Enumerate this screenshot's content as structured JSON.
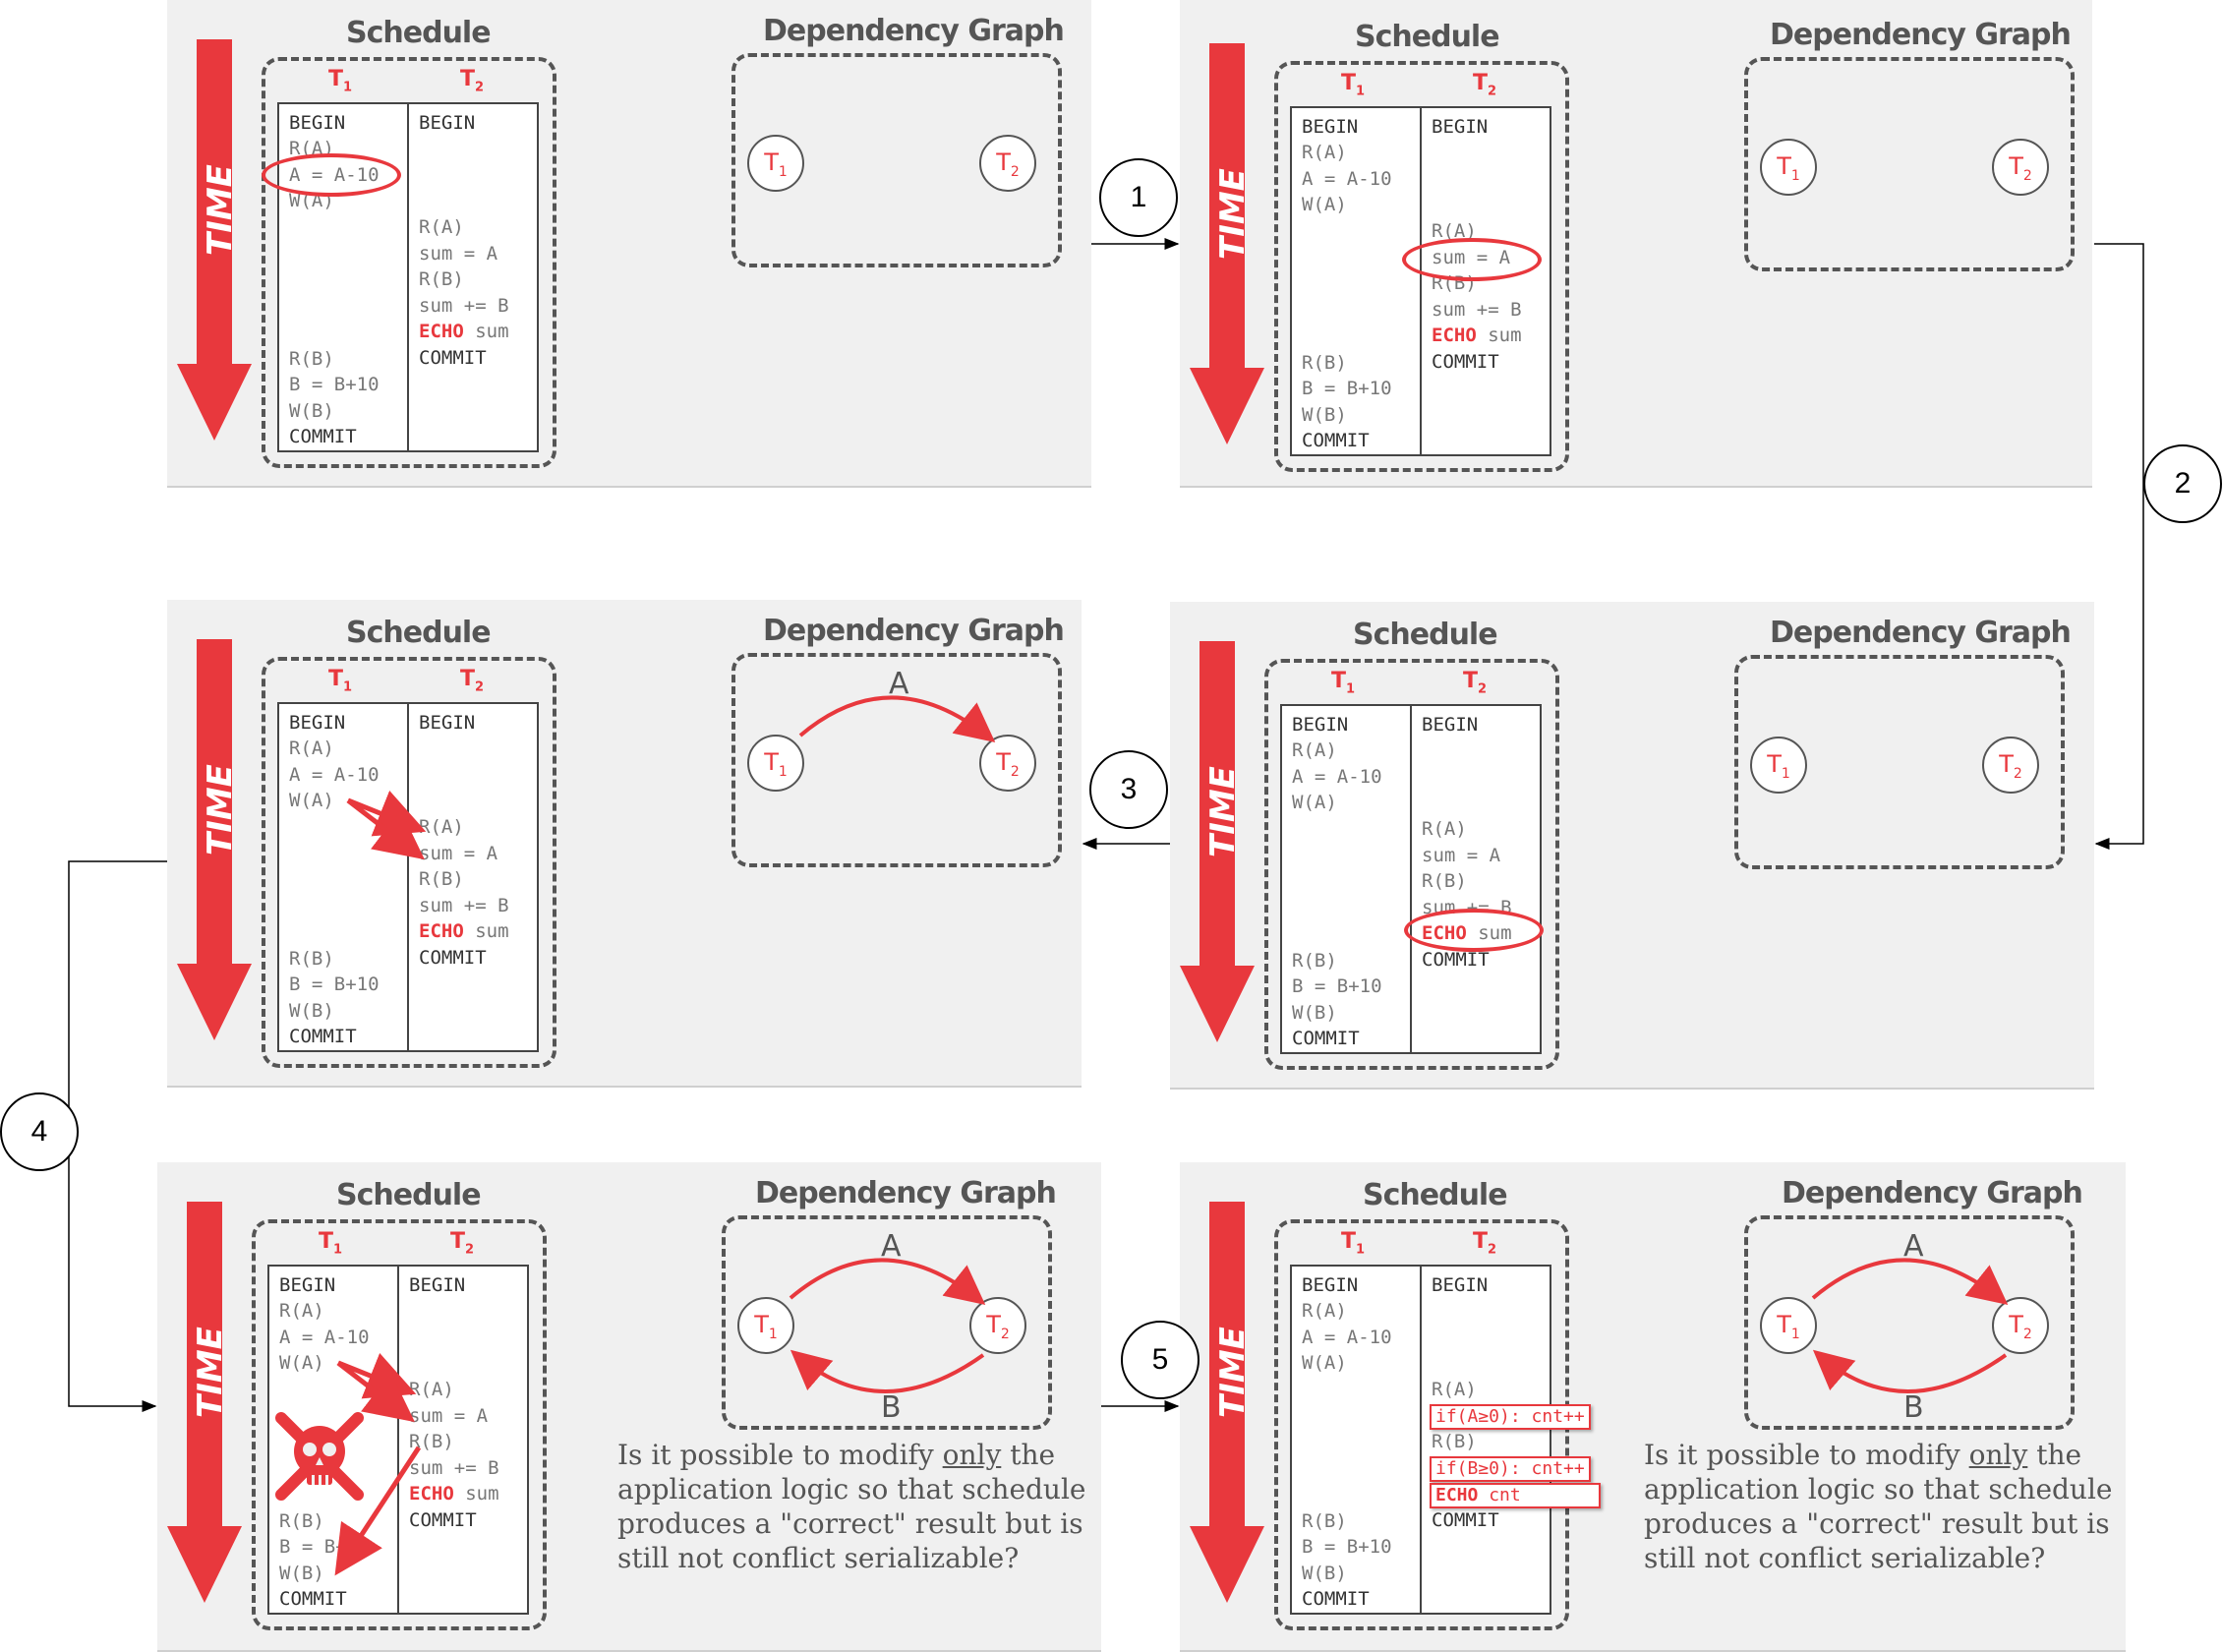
{
  "labels": {
    "schedule": "Schedule",
    "graph": "Dependency Graph",
    "time": "TIME",
    "t1": "T",
    "t2": "T",
    "sub1": "1",
    "sub2": "2",
    "edge_a": "A",
    "edge_b": "B"
  },
  "t1_ops": [
    "BEGIN",
    "R(A)",
    "A = A-10",
    "W(A)",
    "R(B)",
    "B = B+10",
    "W(B)",
    "COMMIT"
  ],
  "t2_ops": [
    "BEGIN",
    "R(A)",
    "sum = A",
    "R(B)",
    "sum += B",
    "ECHO",
    " sum",
    "COMMIT"
  ],
  "step5_t2": {
    "ra": "R(A)",
    "ifa": "if(A≥0): cnt++",
    "rb": "R(B)",
    "ifb": "if(B≥0): cnt++",
    "echo_kw": "ECHO",
    "echo_var": " cnt",
    "commit": "COMMIT"
  },
  "steps": [
    "1",
    "2",
    "3",
    "4",
    "5"
  ],
  "question": {
    "before": "Is it possible to modify ",
    "underlined": "only",
    "after": " the application logic so that schedule produces a \"correct\" result but is still not conflict serializable?"
  },
  "colors": {
    "accent": "#e8383d",
    "panel_bg": "#f0f0f0",
    "ink": "#555555"
  }
}
